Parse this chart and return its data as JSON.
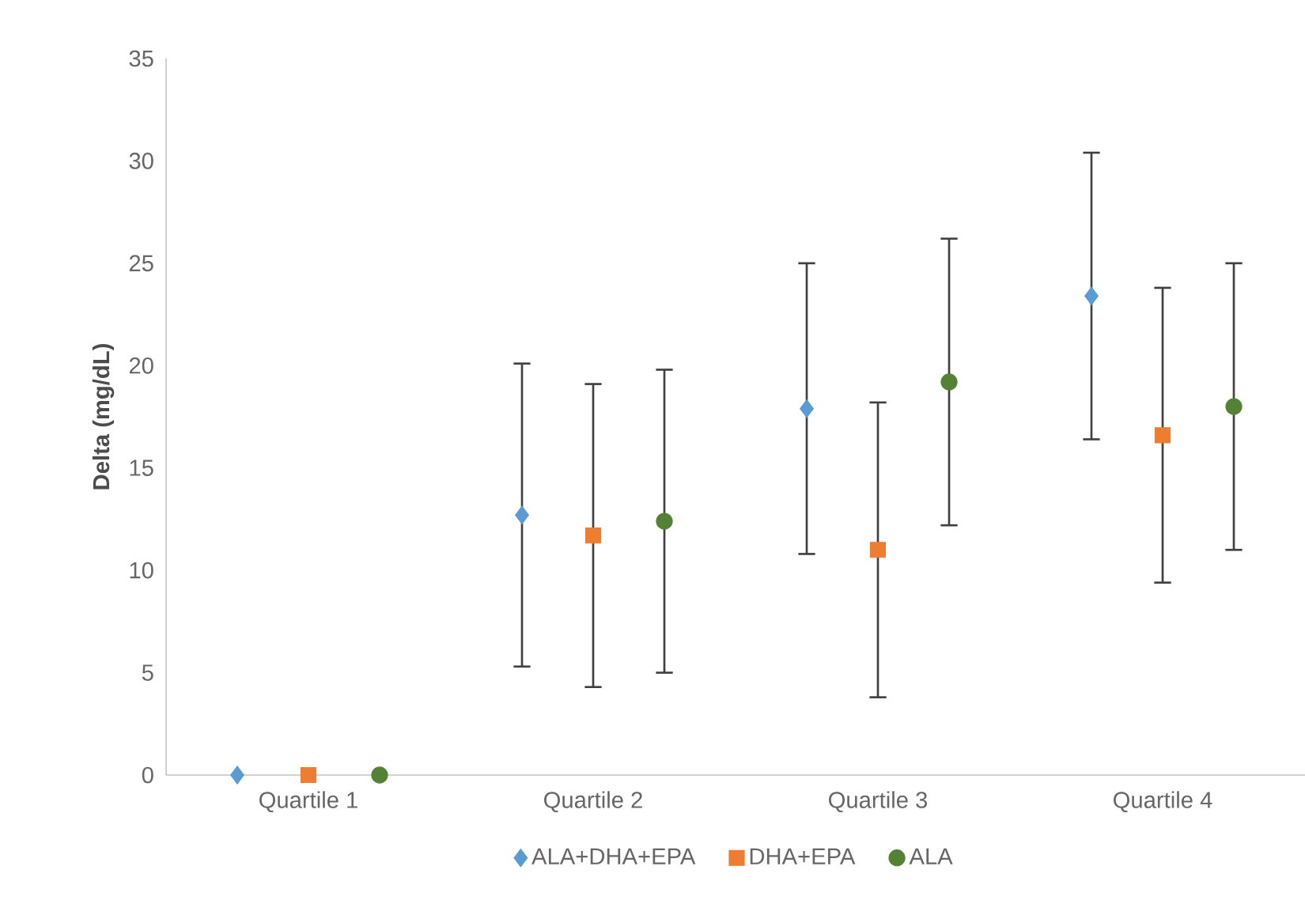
{
  "chart_data": {
    "type": "scatter",
    "ylabel": "Delta (mg/dL)",
    "categories": [
      "Quartile 1",
      "Quartile 2",
      "Quartile 3",
      "Quartile 4"
    ],
    "series": [
      {
        "name": "ALA+DHA+EPA",
        "color": "#5b9bd5",
        "marker": "diamond",
        "values": [
          0,
          12.7,
          17.9,
          23.4
        ],
        "errors": [
          null,
          7.4,
          7.1,
          7.0
        ]
      },
      {
        "name": "DHA+EPA",
        "color": "#ed7d31",
        "marker": "square",
        "values": [
          0,
          11.7,
          11.0,
          16.6
        ],
        "errors": [
          null,
          7.4,
          7.2,
          7.2
        ]
      },
      {
        "name": "ALA",
        "color": "#548235",
        "marker": "circle",
        "values": [
          0,
          12.4,
          19.2,
          18.0
        ],
        "errors": [
          null,
          7.4,
          7.0,
          7.0
        ]
      }
    ],
    "ylim": [
      0,
      35
    ],
    "yticks": [
      0,
      5,
      10,
      15,
      20,
      25,
      30,
      35
    ],
    "grid": false,
    "legend": "bottom"
  }
}
